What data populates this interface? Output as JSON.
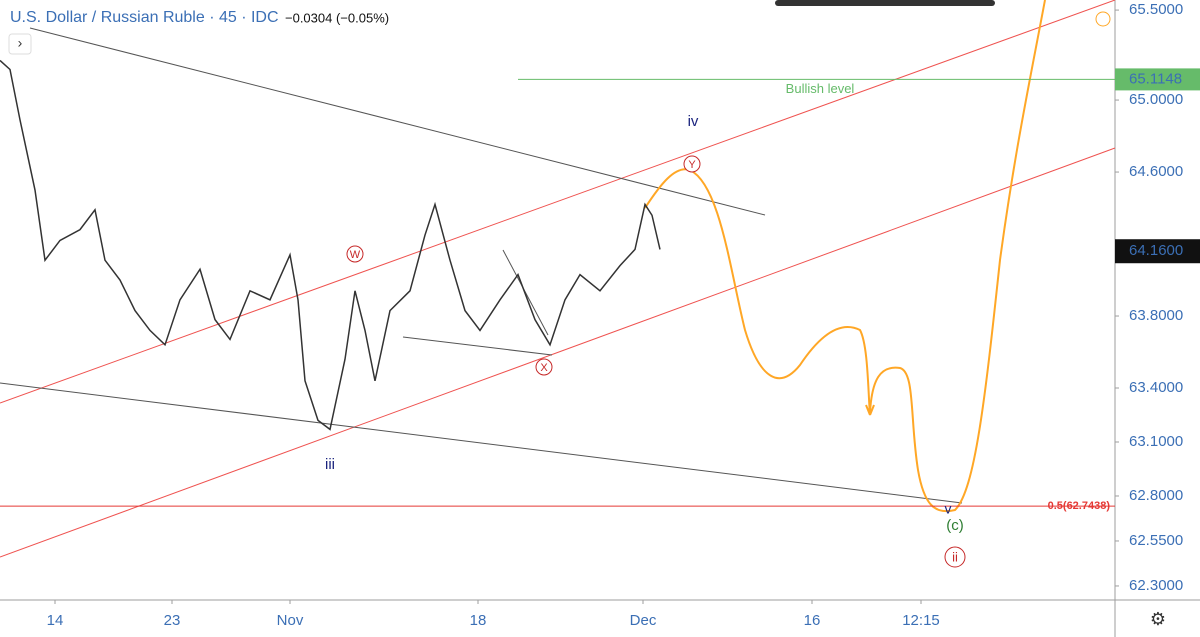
{
  "chart_data": {
    "type": "line",
    "title": "U.S. Dollar / Russian Ruble · 45 · IDC",
    "change": "−0.0304 (−0.05%)",
    "x": [
      0,
      5,
      10,
      17.5,
      22.5,
      30,
      40,
      47.5,
      52.5,
      60,
      67.5,
      75,
      82.5,
      90,
      100,
      107.5,
      115,
      125,
      135,
      145,
      149,
      152.5,
      159,
      165,
      172.5,
      177.5,
      182.5,
      187.5,
      195,
      205,
      212.5,
      217.5,
      225,
      232.5,
      240,
      250,
      259,
      267.5,
      275,
      282.5,
      290,
      300,
      310,
      317.5,
      322.5,
      326,
      330
    ],
    "series": [
      {
        "name": "USDRUB",
        "color": "#333333",
        "values": [
          65.22,
          65.17,
          64.89,
          64.5,
          64.11,
          64.22,
          64.28,
          64.39,
          64.11,
          64.0,
          63.83,
          63.72,
          63.64,
          63.89,
          64.06,
          63.78,
          63.67,
          63.94,
          63.89,
          64.14,
          63.89,
          63.44,
          63.22,
          63.17,
          63.56,
          63.94,
          63.72,
          63.44,
          63.83,
          63.94,
          64.25,
          64.42,
          64.11,
          63.83,
          63.72,
          63.89,
          64.03,
          63.78,
          63.64,
          63.89,
          64.03,
          63.94,
          64.08,
          64.17,
          64.42,
          64.36,
          64.17
        ]
      }
    ],
    "xlim": [
      0,
      557.5
    ],
    "xticks": [
      {
        "value": 27.5,
        "label": "14"
      },
      {
        "value": 86,
        "label": "23"
      },
      {
        "value": 145,
        "label": "Nov"
      },
      {
        "value": 239,
        "label": "18"
      },
      {
        "value": 321.5,
        "label": "Dec"
      },
      {
        "value": 406,
        "label": "16"
      },
      {
        "value": 460.5,
        "label": "12:15"
      }
    ],
    "ylim": [
      62.222,
      65.556
    ],
    "yticks": [
      {
        "value": 65.5,
        "label": "65.5000"
      },
      {
        "value": 65.0,
        "label": "65.0000"
      },
      {
        "value": 64.6,
        "label": "64.6000"
      },
      {
        "value": 63.8,
        "label": "63.8000"
      },
      {
        "value": 63.4,
        "label": "63.4000"
      },
      {
        "value": 63.1,
        "label": "63.1000"
      },
      {
        "value": 62.8,
        "label": "62.8000"
      },
      {
        "value": 62.55,
        "label": "62.5500"
      },
      {
        "value": 62.3,
        "label": "62.3000"
      }
    ],
    "bullish_level": {
      "name": "Bullish level",
      "value": 65.1148,
      "color": "#66bb6a"
    },
    "fib_level": {
      "label": "0.5(62.7438)",
      "value": 62.7438,
      "color": "#e53935"
    },
    "last_price": {
      "value": 64.16,
      "label": "64.1600"
    },
    "wave_labels": [
      "iv",
      "Y",
      "W",
      "X",
      "iii",
      "v",
      "(c)",
      "ii"
    ]
  }
}
